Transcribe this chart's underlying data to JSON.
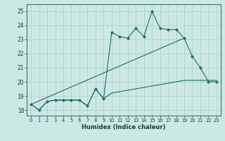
{
  "xlabel": "Humidex (Indice chaleur)",
  "xlim": [
    -0.5,
    23.5
  ],
  "ylim": [
    17.6,
    25.5
  ],
  "yticks": [
    18,
    19,
    20,
    21,
    22,
    23,
    24,
    25
  ],
  "xticks": [
    0,
    1,
    2,
    3,
    4,
    5,
    6,
    7,
    8,
    9,
    10,
    11,
    12,
    13,
    14,
    15,
    16,
    17,
    18,
    19,
    20,
    21,
    22,
    23
  ],
  "bg_color": "#cce8e4",
  "grid_color": "#aaccC8",
  "line_color": "#1a6e62",
  "line1_x": [
    0,
    1,
    2,
    3,
    4,
    5,
    6,
    7,
    8,
    9,
    10,
    11,
    12,
    13,
    14,
    15,
    16,
    17,
    18,
    19,
    20,
    21,
    22,
    23
  ],
  "line1_y": [
    18.4,
    18.0,
    18.6,
    18.7,
    18.7,
    18.7,
    18.7,
    18.3,
    19.5,
    18.8,
    23.5,
    23.2,
    23.1,
    23.8,
    23.2,
    25.0,
    23.8,
    23.7,
    23.7,
    23.1,
    21.8,
    21.0,
    20.0,
    20.0
  ],
  "line2_x": [
    0,
    19
  ],
  "line2_y": [
    18.4,
    23.1
  ],
  "line3_x": [
    0,
    1,
    2,
    3,
    4,
    5,
    6,
    7,
    8,
    9,
    10,
    11,
    12,
    13,
    14,
    15,
    16,
    17,
    18,
    19,
    20,
    21,
    22,
    23
  ],
  "line3_y": [
    18.4,
    18.0,
    18.6,
    18.7,
    18.7,
    18.7,
    18.7,
    18.3,
    19.5,
    18.8,
    19.2,
    19.3,
    19.4,
    19.5,
    19.6,
    19.7,
    19.8,
    19.9,
    20.0,
    20.1,
    20.1,
    20.1,
    20.1,
    20.1
  ],
  "figwidth": 3.2,
  "figheight": 2.0,
  "dpi": 100
}
